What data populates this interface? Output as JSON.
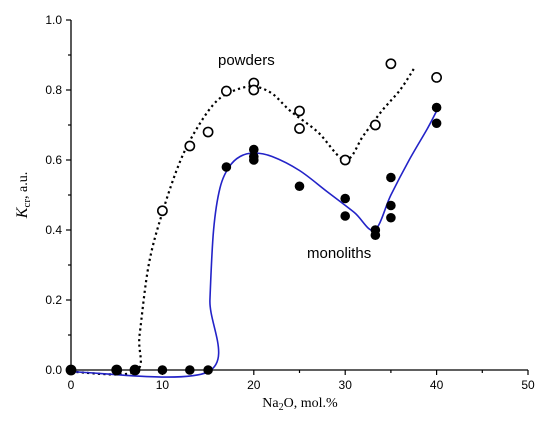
{
  "chart_data": {
    "type": "scatter",
    "ylabel_main": "K",
    "ylabel_sub": "cr",
    "ylabel_rest": ", a.u.",
    "xlabel_main": "Na",
    "xlabel_sub": "2",
    "xlabel_rest": "O, mol.%",
    "xlim": [
      0,
      50
    ],
    "ylim": [
      0,
      1.0
    ],
    "x_ticks": [
      0,
      10,
      20,
      30,
      40,
      50
    ],
    "y_ticks": [
      0.0,
      0.2,
      0.4,
      0.6,
      0.8,
      1.0
    ],
    "annotations": [
      "powders",
      "monoliths"
    ],
    "series": [
      {
        "marker": "open-circle",
        "points": [
          [
            0,
            0.0
          ],
          [
            5,
            0.0
          ],
          [
            7,
            0.0
          ],
          [
            10,
            0.455
          ],
          [
            13,
            0.64
          ],
          [
            15,
            0.68
          ],
          [
            17,
            0.797
          ],
          [
            20,
            0.82
          ],
          [
            20,
            0.8
          ],
          [
            25,
            0.74
          ],
          [
            25,
            0.69
          ],
          [
            30,
            0.6
          ],
          [
            33.3,
            0.7
          ],
          [
            35,
            0.875
          ],
          [
            40,
            0.836
          ]
        ]
      },
      {
        "marker": "filled-circle",
        "points": [
          [
            0,
            0.0
          ],
          [
            5,
            0.0
          ],
          [
            7,
            0.0
          ],
          [
            10,
            0.0
          ],
          [
            13,
            0.0
          ],
          [
            15,
            0.0
          ],
          [
            17,
            0.58
          ],
          [
            20,
            0.63
          ],
          [
            20,
            0.6
          ],
          [
            20,
            0.61
          ],
          [
            25,
            0.525
          ],
          [
            30,
            0.49
          ],
          [
            30,
            0.44
          ],
          [
            33.3,
            0.4
          ],
          [
            33.3,
            0.385
          ],
          [
            35,
            0.55
          ],
          [
            35,
            0.47
          ],
          [
            35,
            0.435
          ],
          [
            40,
            0.75
          ],
          [
            40,
            0.705
          ]
        ]
      }
    ],
    "fit_curves": [
      {
        "style": "dotted",
        "color": "#000000",
        "points": [
          [
            0,
            -0.005
          ],
          [
            7,
            -0.005
          ],
          [
            7.5,
            0.1
          ],
          [
            8.5,
            0.3
          ],
          [
            10,
            0.45
          ],
          [
            12,
            0.6
          ],
          [
            14,
            0.7
          ],
          [
            16,
            0.77
          ],
          [
            18,
            0.8
          ],
          [
            20,
            0.81
          ],
          [
            22,
            0.79
          ],
          [
            24,
            0.74
          ],
          [
            27,
            0.68
          ],
          [
            30,
            0.6
          ],
          [
            32,
            0.67
          ],
          [
            34,
            0.74
          ],
          [
            36,
            0.8
          ],
          [
            37.5,
            0.86
          ]
        ]
      },
      {
        "style": "solid",
        "color": "#2323c8",
        "points": [
          [
            0,
            -0.005
          ],
          [
            15,
            -0.005
          ],
          [
            15.2,
            0.2
          ],
          [
            15.6,
            0.4
          ],
          [
            16.3,
            0.52
          ],
          [
            17.3,
            0.58
          ],
          [
            18.5,
            0.61
          ],
          [
            20,
            0.62
          ],
          [
            22,
            0.61
          ],
          [
            25,
            0.57
          ],
          [
            28,
            0.51
          ],
          [
            31,
            0.45
          ],
          [
            33.2,
            0.4
          ],
          [
            35,
            0.5
          ],
          [
            37,
            0.6
          ],
          [
            39,
            0.69
          ],
          [
            40,
            0.74
          ]
        ]
      }
    ]
  }
}
